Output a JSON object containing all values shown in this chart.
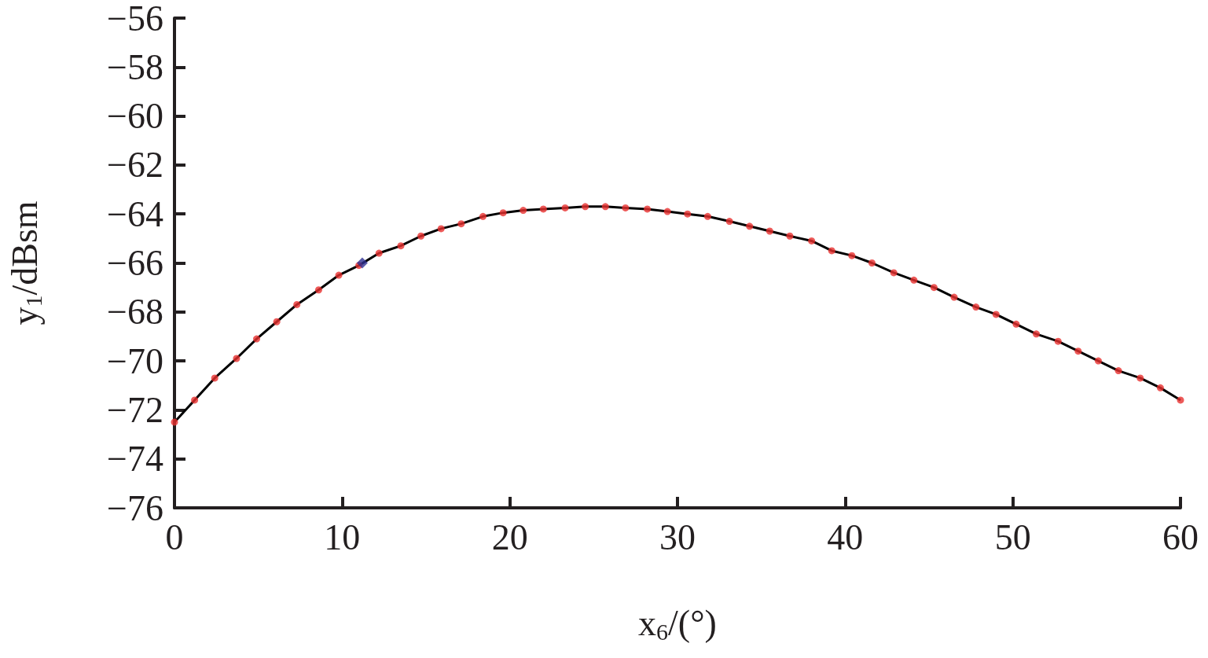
{
  "chart_data": {
    "type": "line",
    "xlabel": "x$_{6}$/(°)",
    "ylabel": "y$_{1}$/dBsm",
    "xlim": [
      0,
      60
    ],
    "xticks": [
      0,
      10,
      20,
      30,
      40,
      50,
      60
    ],
    "ylim": [
      -76,
      -56
    ],
    "yticks": [
      -76,
      -74,
      -72,
      -70,
      -68,
      -66,
      -64,
      -62,
      -60,
      -58,
      -56
    ],
    "grid": false,
    "x": [
      0,
      1.2,
      2.4,
      3.7,
      4.9,
      6.1,
      7.3,
      8.6,
      9.8,
      11.0,
      12.2,
      13.5,
      14.7,
      15.9,
      17.1,
      18.4,
      19.6,
      20.8,
      22.0,
      23.3,
      24.5,
      25.7,
      26.9,
      28.2,
      29.4,
      30.6,
      31.8,
      33.1,
      34.3,
      35.5,
      36.7,
      38.0,
      39.2,
      40.4,
      41.6,
      42.9,
      44.1,
      45.3,
      46.5,
      47.8,
      49.0,
      50.2,
      51.4,
      52.7,
      53.9,
      55.1,
      56.3,
      57.6,
      58.8,
      60
    ],
    "series": [
      {
        "marker": "none",
        "color": "#000000",
        "values": [
          -72.5,
          -71.6,
          -70.7,
          -69.9,
          -69.1,
          -68.4,
          -67.7,
          -67.1,
          -66.5,
          -66.1,
          -65.6,
          -65.3,
          -64.9,
          -64.6,
          -64.4,
          -64.1,
          -63.95,
          -63.85,
          -63.8,
          -63.75,
          -63.7,
          -63.7,
          -63.75,
          -63.8,
          -63.9,
          -64.0,
          -64.1,
          -64.3,
          -64.5,
          -64.7,
          -64.9,
          -65.1,
          -65.5,
          -65.7,
          -66.0,
          -66.4,
          -66.7,
          -67.0,
          -67.4,
          -67.8,
          -68.1,
          -68.5,
          -68.9,
          -69.2,
          -69.6,
          -70.0,
          -70.4,
          -70.7,
          -71.1,
          -71.6
        ]
      },
      {
        "type": "scatter",
        "marker": "circle",
        "color": "#e8312f",
        "values": [
          -72.5,
          -71.6,
          -70.7,
          -69.9,
          -69.1,
          -68.4,
          -67.7,
          -67.1,
          -66.5,
          -66.1,
          -65.6,
          -65.3,
          -64.9,
          -64.6,
          -64.4,
          -64.1,
          -63.95,
          -63.85,
          -63.8,
          -63.75,
          -63.7,
          -63.7,
          -63.75,
          -63.8,
          -63.9,
          -64.0,
          -64.1,
          -64.3,
          -64.5,
          -64.7,
          -64.9,
          -65.1,
          -65.5,
          -65.7,
          -66.0,
          -66.4,
          -66.7,
          -67.0,
          -67.4,
          -67.8,
          -68.1,
          -68.5,
          -68.9,
          -69.2,
          -69.6,
          -70.0,
          -70.4,
          -70.7,
          -71.1,
          -71.6
        ]
      },
      {
        "type": "scatter",
        "marker": "diamond",
        "color": "#2e3192",
        "x": [
          11.2
        ],
        "values": [
          -66.0
        ]
      }
    ]
  }
}
